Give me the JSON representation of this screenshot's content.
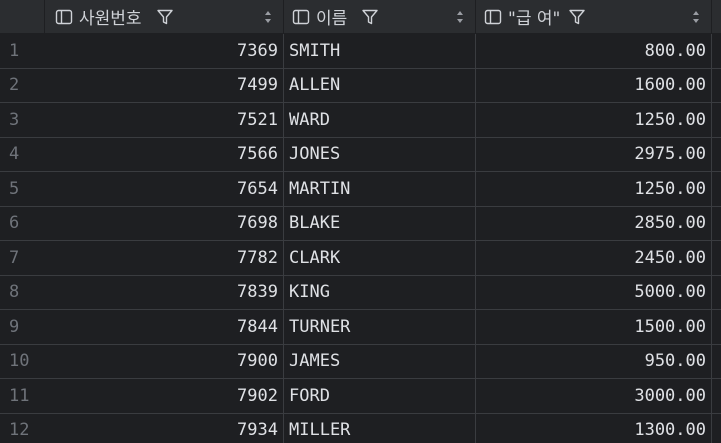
{
  "columns": [
    {
      "label": "사원번호"
    },
    {
      "label": "이름"
    },
    {
      "label": "\"급 여\""
    }
  ],
  "icons": {
    "column": "column-icon",
    "filter": "filter-icon",
    "sort": "sort-icon"
  },
  "colors": {
    "background": "#1e1f22",
    "header": "#2b2d30",
    "text": "#dfe1e5",
    "row_number": "#6f737a",
    "grid_line": "#3a3c40"
  },
  "rows": [
    {
      "n": "1",
      "empno": "7369",
      "name": "SMITH",
      "sal": "800.00"
    },
    {
      "n": "2",
      "empno": "7499",
      "name": "ALLEN",
      "sal": "1600.00"
    },
    {
      "n": "3",
      "empno": "7521",
      "name": "WARD",
      "sal": "1250.00"
    },
    {
      "n": "4",
      "empno": "7566",
      "name": "JONES",
      "sal": "2975.00"
    },
    {
      "n": "5",
      "empno": "7654",
      "name": "MARTIN",
      "sal": "1250.00"
    },
    {
      "n": "6",
      "empno": "7698",
      "name": "BLAKE",
      "sal": "2850.00"
    },
    {
      "n": "7",
      "empno": "7782",
      "name": "CLARK",
      "sal": "2450.00"
    },
    {
      "n": "8",
      "empno": "7839",
      "name": "KING",
      "sal": "5000.00"
    },
    {
      "n": "9",
      "empno": "7844",
      "name": "TURNER",
      "sal": "1500.00"
    },
    {
      "n": "10",
      "empno": "7900",
      "name": "JAMES",
      "sal": "950.00"
    },
    {
      "n": "11",
      "empno": "7902",
      "name": "FORD",
      "sal": "3000.00"
    },
    {
      "n": "12",
      "empno": "7934",
      "name": "MILLER",
      "sal": "1300.00"
    }
  ]
}
